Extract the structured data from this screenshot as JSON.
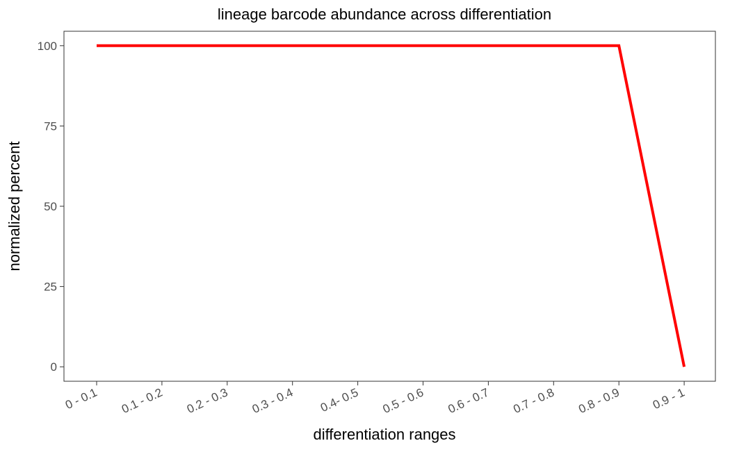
{
  "chart_data": {
    "type": "line",
    "title": "lineage barcode abundance across differentiation",
    "xlabel": "differentiation ranges",
    "ylabel": "normalized percent",
    "categories": [
      "0 - 0.1",
      "0.1 - 0.2",
      "0.2 - 0.3",
      "0.3 - 0.4",
      "0.4- 0.5",
      "0.5 - 0.6",
      "0.6 - 0.7",
      "0.7 - 0.8",
      "0.8 - 0.9",
      "0.9 - 1"
    ],
    "series": [
      {
        "values": [
          100,
          100,
          100,
          100,
          100,
          100,
          100,
          100,
          100,
          0
        ],
        "color": "#ff0000"
      }
    ],
    "yticks": [
      0,
      25,
      50,
      75,
      100
    ],
    "ylim": [
      -4.5,
      104.5
    ],
    "grid": false,
    "legend": "none"
  }
}
